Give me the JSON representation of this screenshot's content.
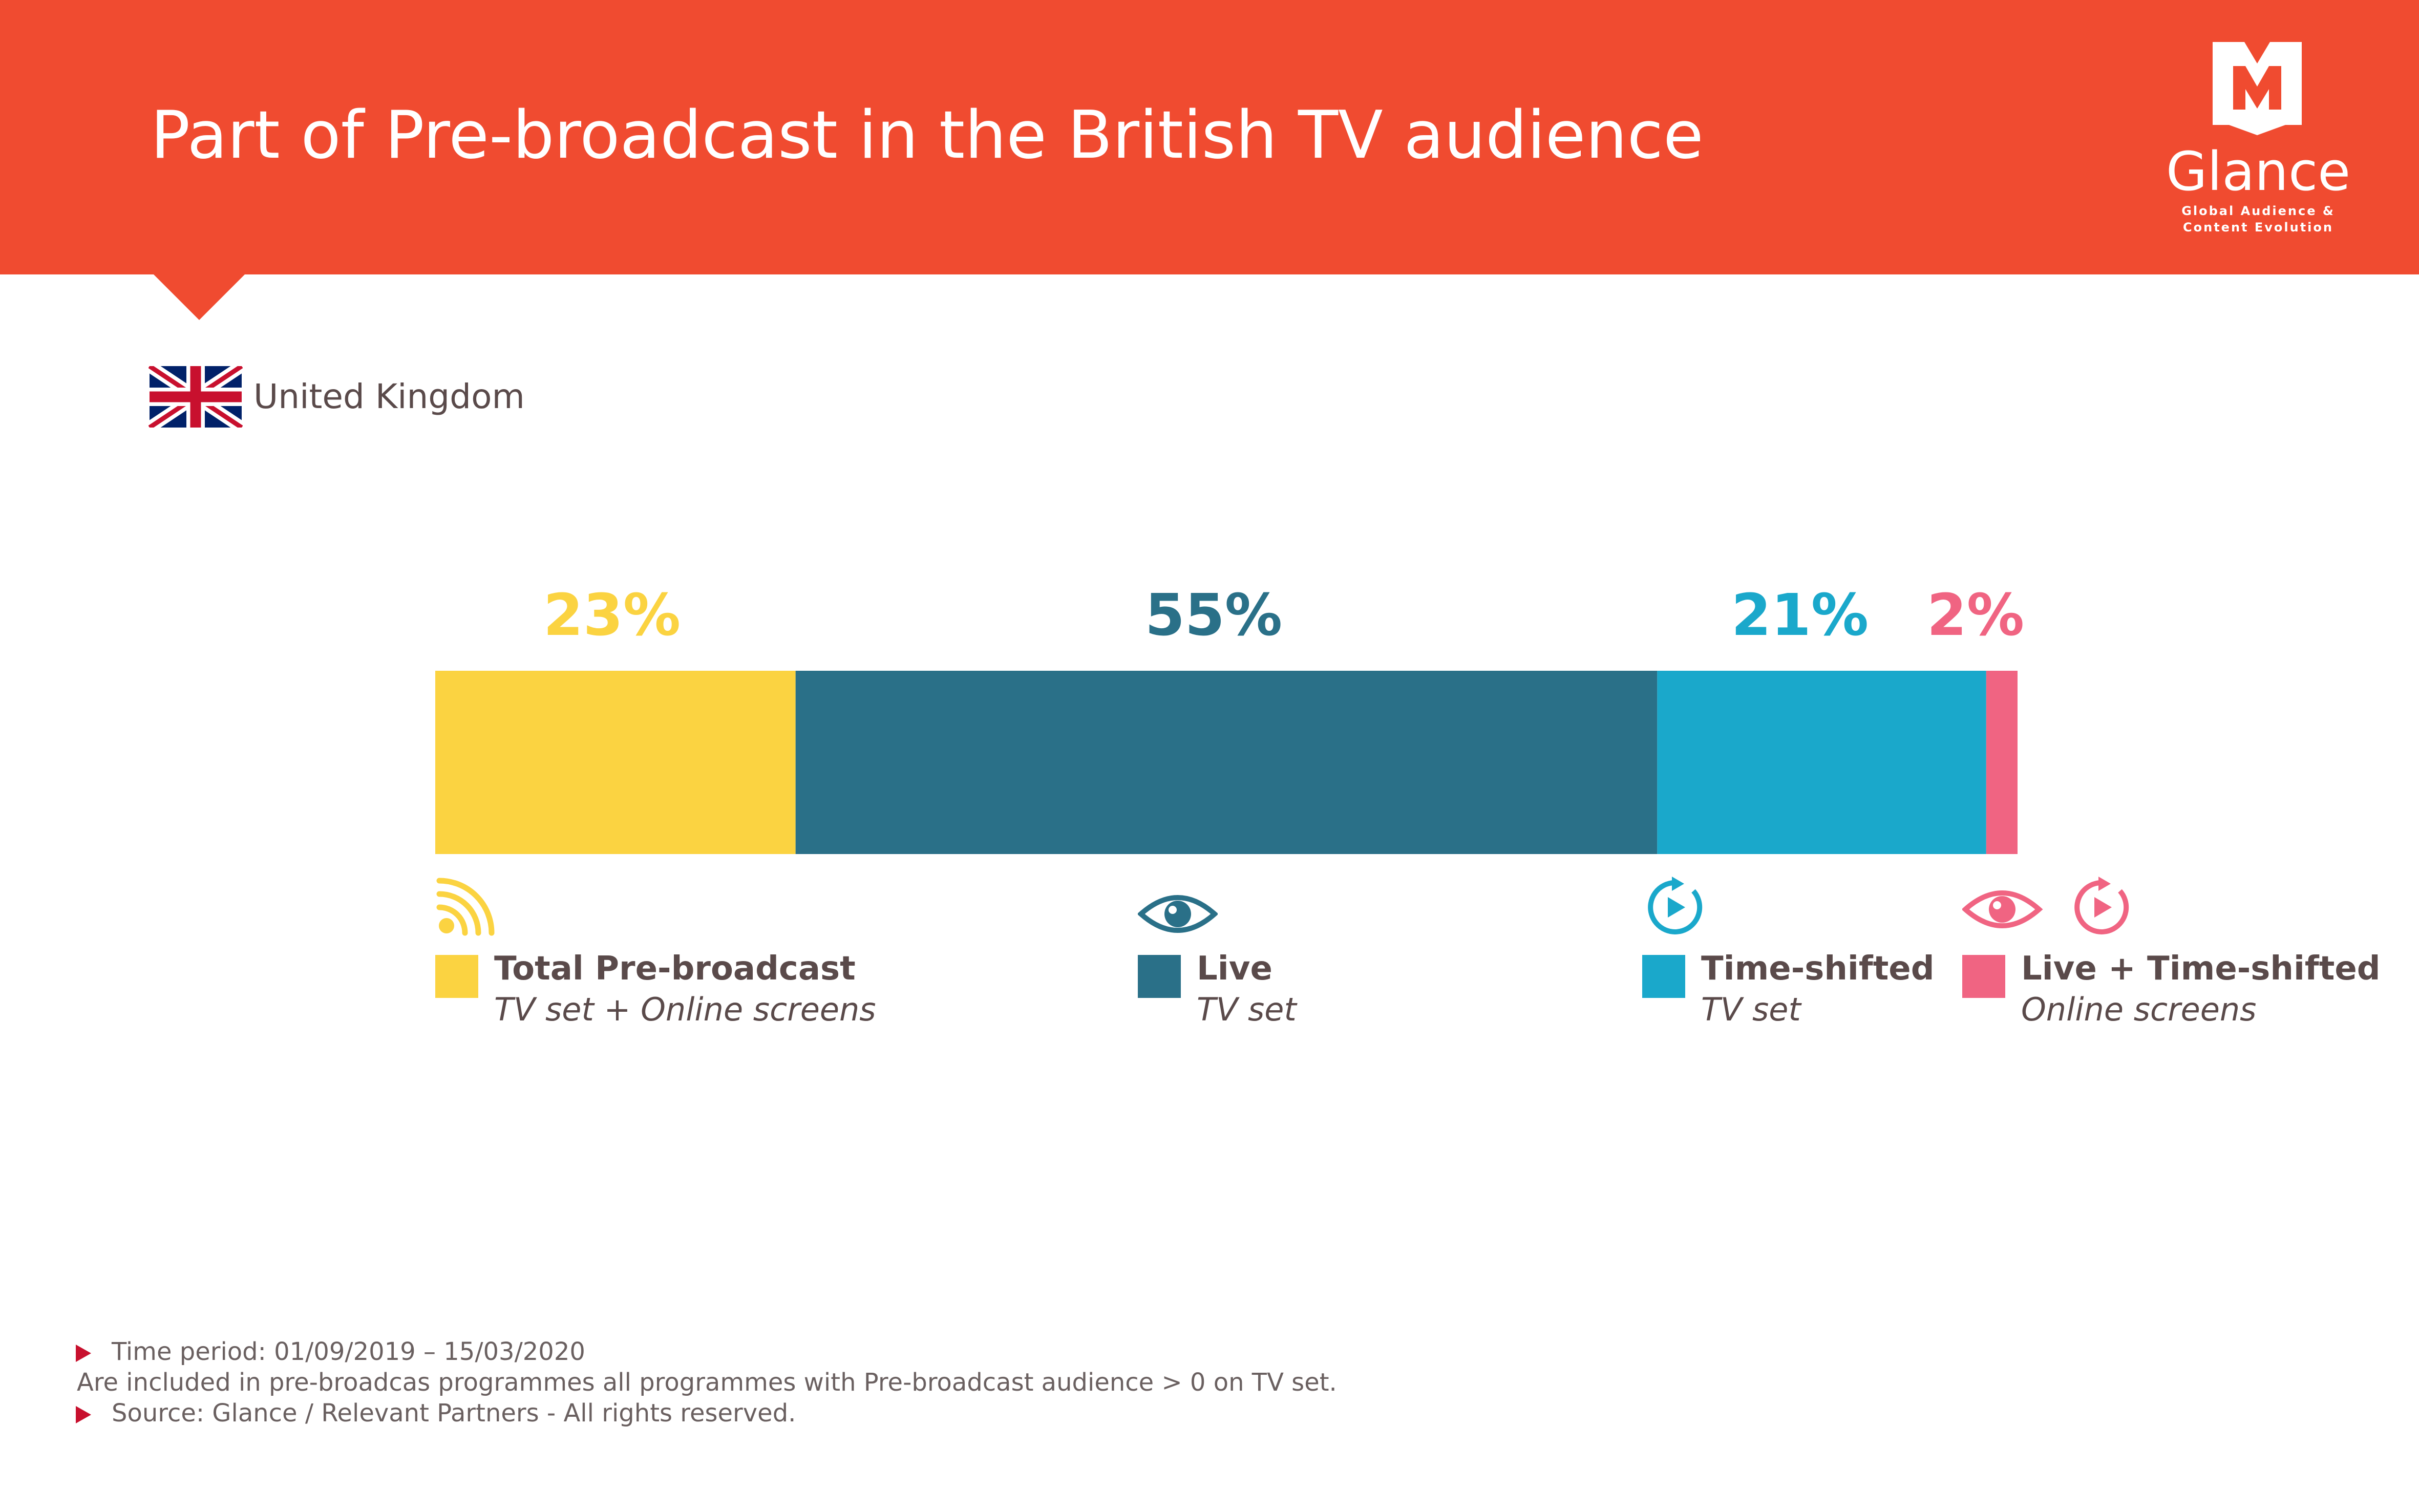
{
  "header": {
    "title": "Part of Pre-broadcast in the British TV audience",
    "background_color": "#f04b30"
  },
  "logo": {
    "name": "Glance",
    "tagline_line1": "Global Audience &",
    "tagline_line2": "Content Evolution"
  },
  "country": {
    "label": "United Kingdom",
    "flag_icon": "uk-flag-icon"
  },
  "chart_data": {
    "type": "bar",
    "orientation": "horizontal-stacked-100",
    "series": [
      {
        "name": "Total Pre-broadcast",
        "subtitle": "TV set + Online screens",
        "value": 23,
        "label": "23%",
        "color": "#fbd341",
        "icon": "rss-feed-icon"
      },
      {
        "name": "Live",
        "subtitle": "TV set",
        "value": 55,
        "label": "55%",
        "color": "#2a7088",
        "icon": "eye-icon"
      },
      {
        "name": "Time-shifted",
        "subtitle": "TV set",
        "value": 21,
        "label": "21%",
        "color": "#1aa8cb",
        "icon": "replay-icon"
      },
      {
        "name": "Live + Time-shifted",
        "subtitle": "Online screens",
        "value": 2,
        "label": "2%",
        "color": "#f06482",
        "icon": "eye-and-replay-icon"
      }
    ],
    "xlim": [
      0,
      101
    ],
    "unit": "%",
    "grid": false,
    "legend_position": "bottom"
  },
  "footnotes": [
    {
      "bullet": true,
      "text": "Time period: 01/09/2019 – 15/03/2020"
    },
    {
      "bullet": false,
      "text": "Are included in pre-broadcas programmes all programmes with Pre-broadcast audience > 0 on TV set."
    },
    {
      "bullet": true,
      "text": "Source: Glance / Relevant Partners - All rights reserved."
    }
  ],
  "colors": {
    "accent": "#f04b30",
    "text": "#5a4a4a",
    "bullet": "#c8102e"
  }
}
